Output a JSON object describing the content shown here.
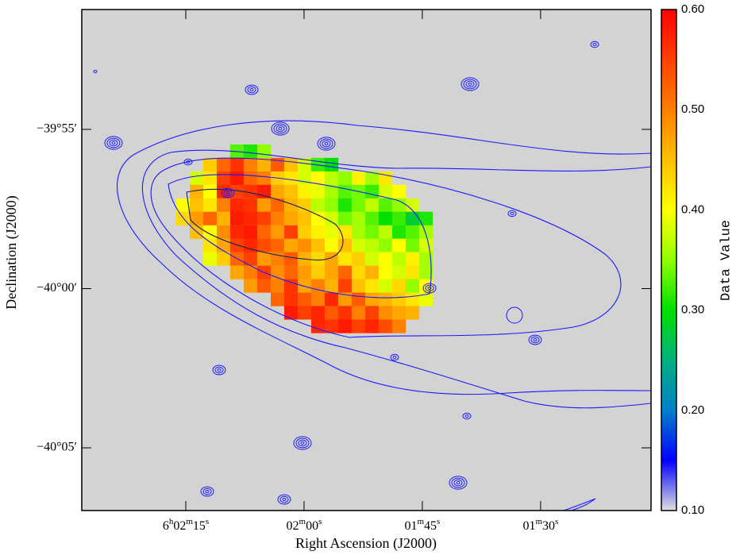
{
  "chart_data": {
    "type": "heatmap",
    "xlabel": "Right Ascension (J2000)",
    "ylabel": "Declination (J2000)",
    "colorbar_label": "Data Value",
    "xlim": [
      148.19,
      75.99
    ],
    "xticks": [
      {
        "value": 135,
        "label": "6h02m15s"
      },
      {
        "value": 120,
        "label": "02m00s"
      },
      {
        "value": 105,
        "label": "01m45s"
      },
      {
        "value": 90,
        "label": "01m30s"
      }
    ],
    "ylim": [
      -40.1161,
      -39.854
    ],
    "yticks": [
      {
        "value": -39.9167,
        "label": "−39°55′"
      },
      {
        "value": -40.0,
        "label": "−40°00′"
      },
      {
        "value": -40.0833,
        "label": "−40°05′"
      }
    ],
    "zlim": [
      0.1,
      0.6
    ],
    "zticks": [
      {
        "value": 0.1,
        "label": "0.10"
      },
      {
        "value": 0.2,
        "label": "0.20"
      },
      {
        "value": 0.3,
        "label": "0.30"
      },
      {
        "value": 0.4,
        "label": "0.40"
      },
      {
        "value": 0.5,
        "label": "0.50"
      },
      {
        "value": 0.6,
        "label": "0.60"
      }
    ],
    "colormap": [
      "#e0e0e0",
      "#0000ff",
      "#0080c8",
      "#00b080",
      "#00e000",
      "#90ff00",
      "#ffff00",
      "#ffc000",
      "#ff8000",
      "#ff4000",
      "#ff0000"
    ],
    "background": "#d3d3d3",
    "x": [
      135.35,
      133.64,
      131.93,
      130.22,
      128.51,
      126.8,
      125.08,
      123.37,
      121.66,
      119.95,
      118.24,
      116.53,
      114.82,
      113.1,
      111.39,
      109.68,
      107.97,
      106.26,
      104.55
    ],
    "y": [
      -39.9281,
      -39.9351,
      -39.9422,
      -39.9492,
      -39.9563,
      -39.9633,
      -39.9704,
      -39.9774,
      -39.9844,
      -39.9915,
      -39.9985,
      -40.0056,
      -40.0126,
      -40.0197
    ],
    "z": [
      [
        null,
        null,
        null,
        null,
        0.33,
        0.31,
        0.35,
        null,
        null,
        null,
        null,
        null,
        null,
        null,
        null,
        null,
        null,
        null,
        null
      ],
      [
        null,
        null,
        0.44,
        0.52,
        0.56,
        0.5,
        0.46,
        0.53,
        0.45,
        0.38,
        0.32,
        0.3,
        null,
        null,
        null,
        null,
        null,
        null,
        null
      ],
      [
        null,
        0.38,
        0.42,
        0.55,
        0.58,
        0.52,
        0.5,
        0.44,
        0.42,
        0.38,
        0.4,
        0.37,
        0.35,
        0.41,
        0.36,
        0.42,
        null,
        null,
        null
      ],
      [
        null,
        0.46,
        0.4,
        0.57,
        0.55,
        0.56,
        0.58,
        0.47,
        0.45,
        0.41,
        0.39,
        0.36,
        0.33,
        0.34,
        0.32,
        0.38,
        0.4,
        null,
        null
      ],
      [
        0.4,
        0.45,
        0.42,
        0.5,
        0.57,
        0.56,
        0.48,
        0.52,
        0.46,
        0.44,
        0.37,
        0.35,
        0.31,
        0.34,
        0.37,
        0.33,
        0.35,
        0.38,
        null
      ],
      [
        0.43,
        0.48,
        0.52,
        0.46,
        0.58,
        0.57,
        0.55,
        0.5,
        0.47,
        0.45,
        0.4,
        0.38,
        0.34,
        0.36,
        0.33,
        0.3,
        0.32,
        0.28,
        0.31
      ],
      [
        null,
        0.45,
        0.4,
        0.49,
        0.57,
        0.58,
        0.52,
        0.48,
        0.55,
        0.44,
        0.41,
        0.39,
        0.42,
        0.36,
        0.34,
        0.37,
        0.31,
        0.33,
        0.36
      ],
      [
        null,
        null,
        0.42,
        0.47,
        0.55,
        0.57,
        0.54,
        0.52,
        0.47,
        0.49,
        0.45,
        0.4,
        0.45,
        0.38,
        0.37,
        0.35,
        0.4,
        0.34,
        0.38
      ],
      [
        null,
        null,
        0.39,
        0.44,
        0.52,
        0.55,
        0.48,
        0.5,
        0.53,
        0.46,
        0.43,
        0.47,
        0.42,
        0.44,
        0.38,
        0.4,
        0.37,
        0.41,
        0.36
      ],
      [
        null,
        null,
        null,
        null,
        0.47,
        0.5,
        0.55,
        0.49,
        0.52,
        0.48,
        0.44,
        0.47,
        0.52,
        0.43,
        0.46,
        0.4,
        0.38,
        0.42,
        0.36
      ],
      [
        null,
        null,
        null,
        null,
        null,
        0.48,
        0.53,
        0.5,
        0.56,
        0.47,
        0.5,
        0.46,
        0.55,
        0.45,
        0.42,
        0.38,
        0.43,
        0.35,
        0.4
      ],
      [
        null,
        null,
        null,
        null,
        null,
        null,
        null,
        0.52,
        0.56,
        0.53,
        0.5,
        0.57,
        0.48,
        0.53,
        0.47,
        0.46,
        0.44,
        0.42,
        0.39
      ],
      [
        null,
        null,
        null,
        null,
        null,
        null,
        null,
        null,
        0.58,
        0.55,
        0.57,
        0.53,
        0.56,
        0.5,
        0.55,
        0.49,
        0.47,
        0.46,
        null
      ],
      [
        null,
        null,
        null,
        null,
        null,
        null,
        null,
        null,
        null,
        null,
        0.57,
        0.56,
        0.58,
        0.55,
        0.57,
        0.54,
        0.5,
        null,
        null
      ]
    ]
  }
}
